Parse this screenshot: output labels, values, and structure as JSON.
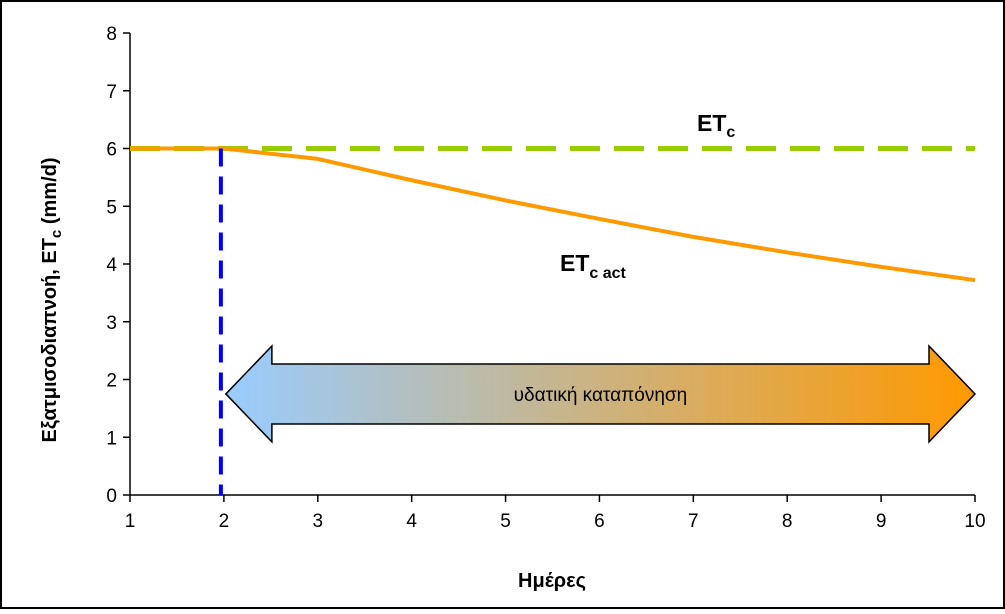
{
  "chart_data": {
    "type": "line",
    "title": "",
    "ylabel": {
      "main": "Εξατμισοδιαπνοή, ET",
      "sub": "c",
      "tail": " (mm/d)"
    },
    "xlabel": "Ημέρες",
    "x": [
      1,
      2,
      3,
      4,
      5,
      6,
      7,
      8,
      9,
      10
    ],
    "xlim": [
      1,
      10
    ],
    "ylim": [
      0,
      8
    ],
    "x_ticks": [
      "1",
      "2",
      "3",
      "4",
      "5",
      "6",
      "7",
      "8",
      "9",
      "10"
    ],
    "y_ticks": [
      "0",
      "1",
      "2",
      "3",
      "4",
      "5",
      "6",
      "7",
      "8"
    ],
    "grid": false,
    "series": [
      {
        "key": "etc",
        "label_main": "ET",
        "label_sub": "c",
        "color": "#99CC00",
        "style": "dashed",
        "values": [
          6,
          6,
          6,
          6,
          6,
          6,
          6,
          6,
          6,
          6
        ]
      },
      {
        "key": "etc_act",
        "label_main": "ET",
        "label_sub": "c act",
        "color": "#FF9900",
        "style": "solid",
        "values": [
          6.0,
          6.0,
          5.82,
          5.45,
          5.1,
          4.78,
          4.47,
          4.2,
          3.95,
          3.72
        ]
      }
    ],
    "marker_line": {
      "x": 2,
      "color": "#0000FF",
      "style": "dashed"
    },
    "annotation": {
      "text": "υδατική καταπόνηση",
      "x_start": 2,
      "x_end": 10,
      "y": 1.75,
      "gradient_from": "#99CCFF",
      "gradient_to": "#FF9900"
    }
  }
}
